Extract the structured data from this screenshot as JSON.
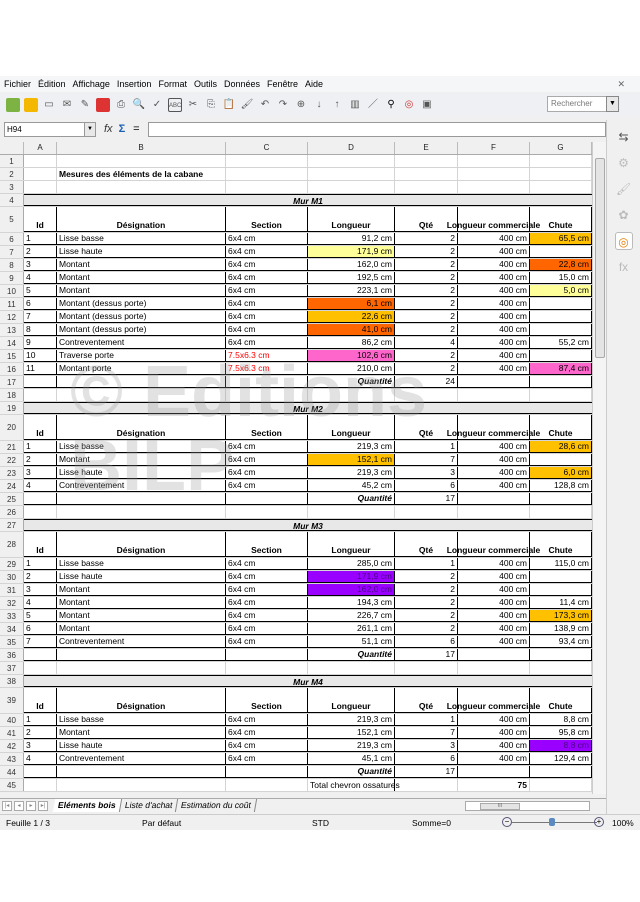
{
  "menu": [
    "Fichier",
    "Édition",
    "Affichage",
    "Insertion",
    "Format",
    "Outils",
    "Données",
    "Fenêtre",
    "Aide"
  ],
  "toolbar": {
    "search_placeholder": "Rechercher"
  },
  "formula_bar": {
    "cell_ref": "H94",
    "formula": ""
  },
  "columns": [
    "A",
    "B",
    "C",
    "D",
    "E",
    "F",
    "G"
  ],
  "colors": {
    "light_yellow": "#ffff99",
    "gold": "#ffc000",
    "orange": "#ff6600",
    "pink": "#ff66cc",
    "purple": "#9900ff",
    "red_text": "#ff0000",
    "section_bg": "#e8e8e8"
  },
  "watermark": {
    "line1": "© Editions",
    "line2": "BILP"
  },
  "rows": [
    {
      "n": "1",
      "kind": "blank"
    },
    {
      "n": "2",
      "kind": "title",
      "text": "Mesures des éléments de la cabane"
    },
    {
      "n": "3",
      "kind": "blank"
    },
    {
      "n": "4",
      "kind": "section",
      "text": "Mur M1"
    },
    {
      "n": "5",
      "kind": "header",
      "cells": [
        "Id",
        "Désignation",
        "Section",
        "Longueur",
        "Qté",
        "Longueur commerciale",
        "Chute"
      ]
    },
    {
      "n": "6",
      "kind": "item",
      "cells": [
        "1",
        "Lisse basse",
        "6x4 cm",
        "91,2 cm",
        "2",
        "400 cm",
        "65,5 cm"
      ],
      "fill": {
        "6": "#ffc000"
      }
    },
    {
      "n": "7",
      "kind": "item",
      "cells": [
        "2",
        "Lisse haute",
        "6x4 cm",
        "171,9 cm",
        "2",
        "400 cm",
        ""
      ],
      "fill": {
        "3": "#ffff99"
      }
    },
    {
      "n": "8",
      "kind": "item",
      "cells": [
        "3",
        "Montant",
        "6x4 cm",
        "162,0 cm",
        "2",
        "400 cm",
        "22,8 cm"
      ],
      "fill": {
        "6": "#ff6600"
      }
    },
    {
      "n": "9",
      "kind": "item",
      "cells": [
        "4",
        "Montant",
        "6x4 cm",
        "192,5 cm",
        "2",
        "400 cm",
        "15,0 cm"
      ]
    },
    {
      "n": "10",
      "kind": "item",
      "cells": [
        "5",
        "Montant",
        "6x4 cm",
        "223,1 cm",
        "2",
        "400 cm",
        "5,0 cm"
      ],
      "fill": {
        "6": "#ffff99"
      }
    },
    {
      "n": "11",
      "kind": "item",
      "cells": [
        "6",
        "Montant (dessus porte)",
        "6x4 cm",
        "6,1 cm",
        "2",
        "400 cm",
        ""
      ],
      "fill": {
        "3": "#ff6600"
      }
    },
    {
      "n": "12",
      "kind": "item",
      "cells": [
        "7",
        "Montant (dessus porte)",
        "6x4 cm",
        "22,6 cm",
        "2",
        "400 cm",
        ""
      ],
      "fill": {
        "3": "#ffc000"
      }
    },
    {
      "n": "13",
      "kind": "item",
      "cells": [
        "8",
        "Montant (dessus porte)",
        "6x4 cm",
        "41,0 cm",
        "2",
        "400 cm",
        ""
      ],
      "fill": {
        "3": "#ff6600"
      }
    },
    {
      "n": "14",
      "kind": "item",
      "cells": [
        "9",
        "Contreventement",
        "6x4 cm",
        "86,2 cm",
        "4",
        "400 cm",
        "55,2 cm"
      ]
    },
    {
      "n": "15",
      "kind": "item",
      "cells": [
        "10",
        "Traverse porte",
        "7.5x6.3 cm",
        "102,6 cm",
        "2",
        "400 cm",
        ""
      ],
      "fill": {
        "3": "#ff66cc"
      },
      "red_section": true
    },
    {
      "n": "16",
      "kind": "item",
      "cells": [
        "11",
        "Montant porte",
        "7.5x6.3 cm",
        "210,0 cm",
        "2",
        "400 cm",
        "87,4 cm"
      ],
      "fill": {
        "6": "#ff66cc"
      },
      "red_section": true
    },
    {
      "n": "17",
      "kind": "total",
      "label": "Quantité",
      "qty": "24"
    },
    {
      "n": "18",
      "kind": "blank"
    },
    {
      "n": "19",
      "kind": "section",
      "text": "Mur M2"
    },
    {
      "n": "20",
      "kind": "header",
      "cells": [
        "Id",
        "Désignation",
        "Section",
        "Longueur",
        "Qté",
        "Longueur commerciale",
        "Chute"
      ]
    },
    {
      "n": "21",
      "kind": "item",
      "cells": [
        "1",
        "Lisse basse",
        "6x4 cm",
        "219,3 cm",
        "1",
        "400 cm",
        "28,6 cm"
      ],
      "fill": {
        "6": "#ffc000"
      }
    },
    {
      "n": "22",
      "kind": "item",
      "cells": [
        "2",
        "Montant",
        "6x4 cm",
        "152,1 cm",
        "7",
        "400 cm",
        ""
      ],
      "fill": {
        "3": "#ffc000"
      }
    },
    {
      "n": "23",
      "kind": "item",
      "cells": [
        "3",
        "Lisse haute",
        "6x4 cm",
        "219,3 cm",
        "3",
        "400 cm",
        "6,0 cm"
      ],
      "fill": {
        "6": "#ffc000"
      }
    },
    {
      "n": "24",
      "kind": "item",
      "cells": [
        "4",
        "Contreventement",
        "6x4 cm",
        "45,2 cm",
        "6",
        "400 cm",
        "128,8 cm"
      ]
    },
    {
      "n": "25",
      "kind": "total",
      "label": "Quantité",
      "qty": "17"
    },
    {
      "n": "26",
      "kind": "blank"
    },
    {
      "n": "27",
      "kind": "section",
      "text": "Mur M3"
    },
    {
      "n": "28",
      "kind": "header",
      "cells": [
        "Id",
        "Désignation",
        "Section",
        "Longueur",
        "Qté",
        "Longueur commerciale",
        "Chute"
      ]
    },
    {
      "n": "29",
      "kind": "item",
      "cells": [
        "1",
        "Lisse basse",
        "6x4 cm",
        "285,0 cm",
        "1",
        "400 cm",
        "115,0 cm"
      ]
    },
    {
      "n": "30",
      "kind": "item",
      "cells": [
        "2",
        "Lisse haute",
        "6x4 cm",
        "171,9 cm",
        "2",
        "400 cm",
        ""
      ],
      "fill": {
        "3": "#9900ff"
      }
    },
    {
      "n": "31",
      "kind": "item",
      "cells": [
        "3",
        "Montant",
        "6x4 cm",
        "162,0 cm",
        "2",
        "400 cm",
        ""
      ],
      "fill": {
        "3": "#9900ff"
      }
    },
    {
      "n": "32",
      "kind": "item",
      "cells": [
        "4",
        "Montant",
        "6x4 cm",
        "194,3 cm",
        "2",
        "400 cm",
        "11,4 cm"
      ]
    },
    {
      "n": "33",
      "kind": "item",
      "cells": [
        "5",
        "Montant",
        "6x4 cm",
        "226,7 cm",
        "2",
        "400 cm",
        "173,3 cm"
      ],
      "fill": {
        "6": "#ffc000"
      }
    },
    {
      "n": "34",
      "kind": "item",
      "cells": [
        "6",
        "Montant",
        "6x4 cm",
        "261,1 cm",
        "2",
        "400 cm",
        "138,9 cm"
      ]
    },
    {
      "n": "35",
      "kind": "item",
      "cells": [
        "7",
        "Contreventement",
        "6x4 cm",
        "51,1 cm",
        "6",
        "400 cm",
        "93,4 cm"
      ]
    },
    {
      "n": "36",
      "kind": "total",
      "label": "Quantité",
      "qty": "17"
    },
    {
      "n": "37",
      "kind": "blank"
    },
    {
      "n": "38",
      "kind": "section",
      "text": "Mur M4"
    },
    {
      "n": "39",
      "kind": "header",
      "cells": [
        "Id",
        "Désignation",
        "Section",
        "Longueur",
        "Qté",
        "Longueur commerciale",
        "Chute"
      ]
    },
    {
      "n": "40",
      "kind": "item",
      "cells": [
        "1",
        "Lisse basse",
        "6x4 cm",
        "219,3 cm",
        "1",
        "400 cm",
        "8,8 cm"
      ]
    },
    {
      "n": "41",
      "kind": "item",
      "cells": [
        "2",
        "Montant",
        "6x4 cm",
        "152,1 cm",
        "7",
        "400 cm",
        "95,8 cm"
      ]
    },
    {
      "n": "42",
      "kind": "item",
      "cells": [
        "3",
        "Lisse haute",
        "6x4 cm",
        "219,3 cm",
        "3",
        "400 cm",
        "8,8 cm"
      ],
      "fill": {
        "6": "#9900ff"
      }
    },
    {
      "n": "43",
      "kind": "item",
      "cells": [
        "4",
        "Contreventement",
        "6x4 cm",
        "45,1 cm",
        "6",
        "400 cm",
        "129,4 cm"
      ]
    },
    {
      "n": "44",
      "kind": "total",
      "label": "Quantité",
      "qty": "17"
    },
    {
      "n": "45",
      "kind": "grand",
      "label": "Total chevron ossatures",
      "value": "75"
    }
  ],
  "sheet_tabs": [
    "Eléments bois",
    "Liste d'achat",
    "Estimation du coût"
  ],
  "status": {
    "sheet": "Feuille 1 / 3",
    "style": "Par défaut",
    "mode": "STD",
    "sum": "Somme=0",
    "zoom": "100%"
  }
}
